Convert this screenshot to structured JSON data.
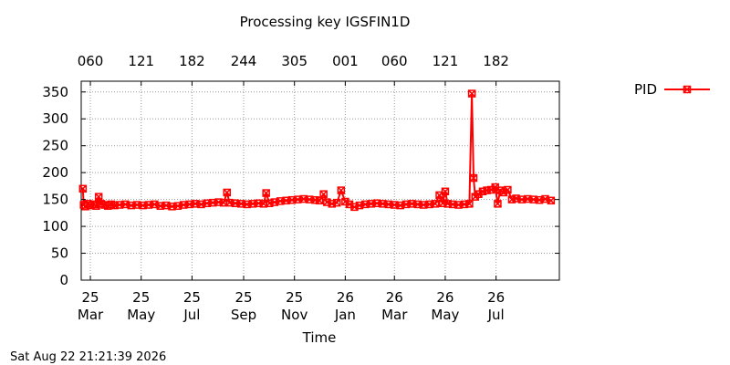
{
  "chart_data": {
    "type": "line",
    "title": "Processing key IGSFIN1D",
    "xlabel": "Time",
    "ylabel": "",
    "ylim": [
      0,
      370
    ],
    "y_ticks": [
      0,
      50,
      100,
      150,
      200,
      250,
      300,
      350
    ],
    "x_range": [
      "2025-02-18",
      "2026-09-15"
    ],
    "grid": true,
    "legend_position": "top-right",
    "bottom_ticks": [
      {
        "date": "2025-03-01",
        "year": "25",
        "month": "Mar"
      },
      {
        "date": "2025-05-01",
        "year": "25",
        "month": "May"
      },
      {
        "date": "2025-07-01",
        "year": "25",
        "month": "Jul"
      },
      {
        "date": "2025-09-01",
        "year": "25",
        "month": "Sep"
      },
      {
        "date": "2025-11-01",
        "year": "25",
        "month": "Nov"
      },
      {
        "date": "2026-01-01",
        "year": "26",
        "month": "Jan"
      },
      {
        "date": "2026-03-01",
        "year": "26",
        "month": "Mar"
      },
      {
        "date": "2026-05-01",
        "year": "26",
        "month": "May"
      },
      {
        "date": "2026-07-01",
        "year": "26",
        "month": "Jul"
      }
    ],
    "top_ticks": [
      {
        "date": "2025-03-01",
        "label": "060"
      },
      {
        "date": "2025-05-01",
        "label": "121"
      },
      {
        "date": "2025-07-01",
        "label": "182"
      },
      {
        "date": "2025-09-01",
        "label": "244"
      },
      {
        "date": "2025-11-01",
        "label": "305"
      },
      {
        "date": "2026-01-01",
        "label": "001"
      },
      {
        "date": "2026-03-01",
        "label": "060"
      },
      {
        "date": "2026-05-01",
        "label": "121"
      },
      {
        "date": "2026-07-01",
        "label": "182"
      }
    ],
    "series": [
      {
        "name": "PID",
        "color": "#ff0000",
        "marker": "x-box",
        "points": [
          [
            "2025-02-20",
            170
          ],
          [
            "2025-02-21",
            140
          ],
          [
            "2025-02-23",
            137
          ],
          [
            "2025-02-26",
            142
          ],
          [
            "2025-03-01",
            139
          ],
          [
            "2025-03-05",
            141
          ],
          [
            "2025-03-08",
            138
          ],
          [
            "2025-03-11",
            155
          ],
          [
            "2025-03-14",
            142
          ],
          [
            "2025-03-18",
            140
          ],
          [
            "2025-03-22",
            138
          ],
          [
            "2025-03-26",
            141
          ],
          [
            "2025-03-30",
            139
          ],
          [
            "2025-04-05",
            140
          ],
          [
            "2025-04-12",
            141
          ],
          [
            "2025-04-19",
            139
          ],
          [
            "2025-04-26",
            140
          ],
          [
            "2025-05-03",
            139
          ],
          [
            "2025-05-10",
            140
          ],
          [
            "2025-05-17",
            141
          ],
          [
            "2025-05-24",
            138
          ],
          [
            "2025-05-31",
            139
          ],
          [
            "2025-06-07",
            137
          ],
          [
            "2025-06-14",
            138
          ],
          [
            "2025-06-21",
            140
          ],
          [
            "2025-06-28",
            141
          ],
          [
            "2025-07-05",
            142
          ],
          [
            "2025-07-12",
            141
          ],
          [
            "2025-07-19",
            143
          ],
          [
            "2025-07-26",
            144
          ],
          [
            "2025-08-02",
            145
          ],
          [
            "2025-08-08",
            144
          ],
          [
            "2025-08-12",
            163
          ],
          [
            "2025-08-15",
            144
          ],
          [
            "2025-08-22",
            143
          ],
          [
            "2025-08-29",
            142
          ],
          [
            "2025-09-05",
            141
          ],
          [
            "2025-09-12",
            142
          ],
          [
            "2025-09-19",
            143
          ],
          [
            "2025-09-25",
            142
          ],
          [
            "2025-09-28",
            162
          ],
          [
            "2025-10-02",
            143
          ],
          [
            "2025-10-08",
            145
          ],
          [
            "2025-10-15",
            147
          ],
          [
            "2025-10-22",
            148
          ],
          [
            "2025-10-29",
            149
          ],
          [
            "2025-11-05",
            150
          ],
          [
            "2025-11-12",
            151
          ],
          [
            "2025-11-19",
            150
          ],
          [
            "2025-11-26",
            149
          ],
          [
            "2025-12-01",
            148
          ],
          [
            "2025-12-06",
            160
          ],
          [
            "2025-12-10",
            145
          ],
          [
            "2025-12-16",
            142
          ],
          [
            "2025-12-22",
            144
          ],
          [
            "2025-12-27",
            167
          ],
          [
            "2026-01-01",
            146
          ],
          [
            "2026-01-06",
            141
          ],
          [
            "2026-01-12",
            136
          ],
          [
            "2026-01-18",
            139
          ],
          [
            "2026-01-25",
            141
          ],
          [
            "2026-02-01",
            142
          ],
          [
            "2026-02-08",
            143
          ],
          [
            "2026-02-15",
            142
          ],
          [
            "2026-02-22",
            141
          ],
          [
            "2026-03-01",
            140
          ],
          [
            "2026-03-08",
            139
          ],
          [
            "2026-03-15",
            141
          ],
          [
            "2026-03-22",
            142
          ],
          [
            "2026-03-29",
            141
          ],
          [
            "2026-04-05",
            140
          ],
          [
            "2026-04-12",
            141
          ],
          [
            "2026-04-19",
            142
          ],
          [
            "2026-04-24",
            158
          ],
          [
            "2026-04-28",
            143
          ],
          [
            "2026-05-01",
            165
          ],
          [
            "2026-05-04",
            142
          ],
          [
            "2026-05-10",
            141
          ],
          [
            "2026-05-17",
            140
          ],
          [
            "2026-05-24",
            141
          ],
          [
            "2026-05-30",
            142
          ],
          [
            "2026-06-02",
            347
          ],
          [
            "2026-06-04",
            190
          ],
          [
            "2026-06-06",
            155
          ],
          [
            "2026-06-10",
            160
          ],
          [
            "2026-06-15",
            165
          ],
          [
            "2026-06-20",
            167
          ],
          [
            "2026-06-25",
            168
          ],
          [
            "2026-06-30",
            173
          ],
          [
            "2026-07-03",
            142
          ],
          [
            "2026-07-06",
            167
          ],
          [
            "2026-07-10",
            163
          ],
          [
            "2026-07-15",
            168
          ],
          [
            "2026-07-20",
            150
          ],
          [
            "2026-07-25",
            152
          ],
          [
            "2026-08-01",
            150
          ],
          [
            "2026-08-08",
            151
          ],
          [
            "2026-08-15",
            150
          ],
          [
            "2026-08-22",
            149
          ],
          [
            "2026-08-29",
            151
          ],
          [
            "2026-09-05",
            148
          ]
        ]
      }
    ]
  },
  "footer": {
    "timestamp": "Sat Aug 22 21:21:39 2026"
  }
}
